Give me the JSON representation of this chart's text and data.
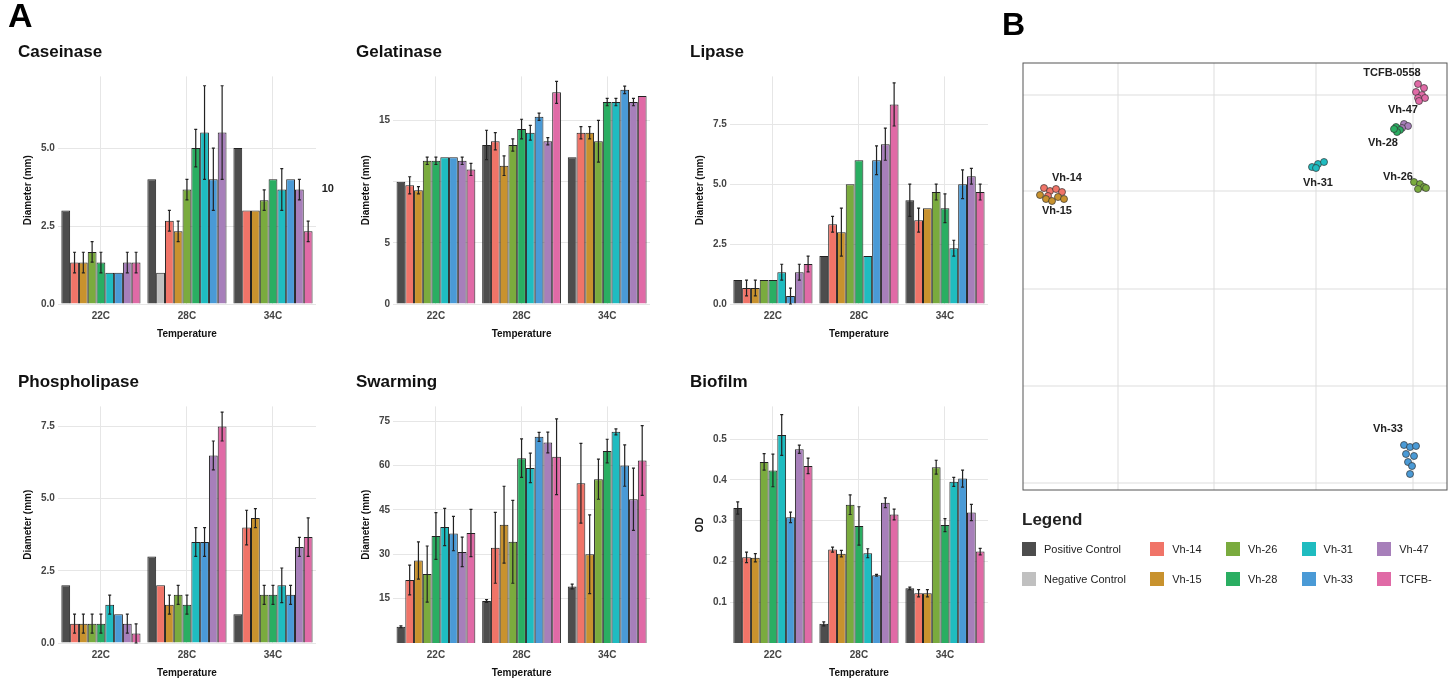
{
  "chart_data": [
    {
      "type": "bar",
      "title": "Caseinase",
      "xlabel": "Temperature",
      "ylabel": "Diameter (mm)",
      "categories": [
        "22C",
        "28C",
        "34C"
      ],
      "ylim": [
        0,
        7.3
      ],
      "yticks": [
        {
          "value": 0,
          "label": "0.0"
        },
        2.5,
        {
          "value": 5,
          "label": "5.0"
        }
      ],
      "grid": true,
      "legend": "right",
      "legend_title": "Legend",
      "annotations": [
        "A",
        "10"
      ],
      "series": [
        {
          "name": "Positive Control",
          "color": "#4d4d4d",
          "values": [
            3,
            4,
            5
          ]
        },
        {
          "name": "Negative Control",
          "color": "#c0c0c0",
          "values": [
            null,
            1,
            null
          ]
        },
        {
          "name": "Vh-14",
          "color": "#f07468",
          "values": [
            1.33,
            2.67,
            3
          ],
          "errors": [
            0.33,
            0.33,
            null
          ]
        },
        {
          "name": "Vh-15",
          "color": "#c8922e",
          "values": [
            1.33,
            2.33,
            3
          ],
          "errors": [
            0.33,
            0.33,
            null
          ]
        },
        {
          "name": "Vh-26",
          "color": "#7aab3e",
          "values": [
            1.67,
            3.67,
            3.33
          ],
          "errors": [
            0.33,
            0.33,
            0.33
          ]
        },
        {
          "name": "Vh-28",
          "color": "#2aae62",
          "values": [
            1.33,
            5,
            4
          ],
          "errors": [
            0.33,
            0.6,
            null
          ]
        },
        {
          "name": "Vh-31",
          "color": "#1fbcc0",
          "values": [
            1,
            5.5,
            3.67
          ],
          "errors": [
            null,
            1.5,
            0.67
          ]
        },
        {
          "name": "Vh-33",
          "color": "#4a9ad6",
          "values": [
            1,
            4,
            4
          ],
          "errors": [
            null,
            1,
            null
          ]
        },
        {
          "name": "Vh-47",
          "color": "#a77fba",
          "values": [
            1.33,
            5.5,
            3.67
          ],
          "errors": [
            0.33,
            1.5,
            0.33
          ]
        },
        {
          "name": "TCFB-",
          "color": "#e06aa6",
          "values": [
            1.33,
            null,
            2.33
          ],
          "errors": [
            0.33,
            null,
            0.33
          ]
        }
      ]
    },
    {
      "type": "bar",
      "title": "Gelatinase",
      "xlabel": "Temperature",
      "ylabel": "Diameter (mm)",
      "categories": [
        "22C",
        "28C",
        "34C"
      ],
      "ylim": [
        0,
        18.6
      ],
      "yticks": [
        0,
        5,
        {
          "value": 10,
          "label": null
        },
        15
      ],
      "grid": true,
      "series": [
        {
          "color": "#4d4d4d",
          "values": [
            10,
            13,
            12
          ],
          "errors": [
            null,
            1.2,
            null
          ]
        },
        {
          "color": "#c0c0c0",
          "values": [
            null,
            null,
            null
          ]
        },
        {
          "color": "#f07468",
          "values": [
            9.7,
            13.3,
            14
          ],
          "errors": [
            0.7,
            0.7,
            0.5
          ]
        },
        {
          "color": "#c8922e",
          "values": [
            9.3,
            11.3,
            14
          ],
          "errors": [
            0.3,
            0.8,
            0.5
          ]
        },
        {
          "color": "#7aab3e",
          "values": [
            11.7,
            13,
            13.3
          ],
          "errors": [
            0.3,
            0.5,
            1.7
          ]
        },
        {
          "color": "#2aae62",
          "values": [
            11.7,
            14.3,
            16.5
          ],
          "errors": [
            0.3,
            0.8,
            0.3
          ]
        },
        {
          "color": "#1fbcc0",
          "values": [
            12,
            14,
            16.5
          ],
          "errors": [
            null,
            0.6,
            0.3
          ]
        },
        {
          "color": "#4a9ad6",
          "values": [
            12,
            15.3,
            17.5
          ],
          "errors": [
            null,
            0.3,
            0.3
          ]
        },
        {
          "color": "#a77fba",
          "values": [
            11.7,
            13.3,
            16.5
          ],
          "errors": [
            0.3,
            0.3,
            0.3
          ]
        },
        {
          "color": "#e06aa6",
          "values": [
            11,
            17.3,
            17
          ],
          "errors": [
            0.5,
            0.9,
            null
          ]
        }
      ]
    },
    {
      "type": "bar",
      "title": "Lipase",
      "xlabel": "Temperature",
      "ylabel": "Diameter (mm)",
      "categories": [
        "22C",
        "28C",
        "34C"
      ],
      "ylim": [
        0,
        9.5
      ],
      "yticks": [
        {
          "value": 0,
          "label": "0.0"
        },
        2.5,
        {
          "value": 5,
          "label": "5.0"
        },
        7.5
      ],
      "grid": true,
      "series": [
        {
          "color": "#4d4d4d",
          "values": [
            1,
            2,
            4.33
          ],
          "errors": [
            null,
            null,
            0.67
          ]
        },
        {
          "color": "#c0c0c0",
          "values": [
            null,
            null,
            null
          ]
        },
        {
          "color": "#f07468",
          "values": [
            0.67,
            3.33,
            3.5
          ],
          "errors": [
            0.33,
            0.33,
            0.5
          ]
        },
        {
          "color": "#c8922e",
          "values": [
            0.67,
            3,
            4
          ],
          "errors": [
            0.33,
            1,
            null
          ]
        },
        {
          "color": "#7aab3e",
          "values": [
            1,
            5,
            4.67
          ],
          "errors": [
            null,
            null,
            0.33
          ]
        },
        {
          "color": "#2aae62",
          "values": [
            1,
            6,
            4
          ],
          "errors": [
            null,
            null,
            0.6
          ]
        },
        {
          "color": "#1fbcc0",
          "values": [
            1.33,
            2,
            2.33
          ],
          "errors": [
            0.33,
            null,
            0.33
          ]
        },
        {
          "color": "#4a9ad6",
          "values": [
            0.33,
            6,
            5
          ],
          "errors": [
            0.33,
            0.6,
            0.6
          ]
        },
        {
          "color": "#a77fba",
          "values": [
            1.33,
            6.67,
            5.33
          ],
          "errors": [
            0.33,
            0.67,
            0.33
          ]
        },
        {
          "color": "#e06aa6",
          "values": [
            1.67,
            8.33,
            4.67
          ],
          "errors": [
            0.33,
            0.9,
            0.33
          ]
        }
      ]
    },
    {
      "type": "bar",
      "title": "Phospholipase",
      "xlabel": "Temperature",
      "ylabel": "Diameter (mm)",
      "categories": [
        "22C",
        "28C",
        "34C"
      ],
      "ylim": [
        0,
        8.2
      ],
      "yticks": [
        {
          "value": 0,
          "label": "0.0"
        },
        2.5,
        {
          "value": 5,
          "label": "5.0"
        },
        7.5
      ],
      "grid": true,
      "series": [
        {
          "color": "#4d4d4d",
          "values": [
            2,
            3,
            1
          ]
        },
        {
          "color": "#c0c0c0",
          "values": [
            null,
            null,
            null
          ]
        },
        {
          "color": "#f07468",
          "values": [
            0.67,
            2,
            4
          ],
          "errors": [
            0.33,
            null,
            0.6
          ]
        },
        {
          "color": "#c8922e",
          "values": [
            0.67,
            1.33,
            4.33
          ],
          "errors": [
            0.33,
            0.33,
            0.33
          ]
        },
        {
          "color": "#7aab3e",
          "values": [
            0.67,
            1.67,
            1.67
          ],
          "errors": [
            0.33,
            0.33,
            0.33
          ]
        },
        {
          "color": "#2aae62",
          "values": [
            0.67,
            1.33,
            1.67
          ],
          "errors": [
            0.33,
            0.33,
            0.33
          ]
        },
        {
          "color": "#1fbcc0",
          "values": [
            1.33,
            3.5,
            2
          ],
          "errors": [
            0.33,
            0.5,
            0.6
          ]
        },
        {
          "color": "#4a9ad6",
          "values": [
            1,
            3.5,
            1.67
          ],
          "errors": [
            null,
            0.5,
            0.33
          ]
        },
        {
          "color": "#a77fba",
          "values": [
            0.67,
            6.5,
            3.33
          ],
          "errors": [
            0.33,
            0.5,
            0.33
          ]
        },
        {
          "color": "#e06aa6",
          "values": [
            0.33,
            7.5,
            3.67
          ],
          "errors": [
            0.33,
            0.5,
            0.67
          ]
        }
      ]
    },
    {
      "type": "bar",
      "title": "Swarming",
      "xlabel": "Temperature",
      "ylabel": "Diameter (mm)",
      "categories": [
        "22C",
        "28C",
        "34C"
      ],
      "ylim": [
        0,
        80
      ],
      "yticks": [
        15,
        30,
        45,
        60,
        75
      ],
      "grid": true,
      "series": [
        {
          "color": "#4d4d4d",
          "values": [
            5.5,
            14.2,
            19.1
          ],
          "errors": [
            0.3,
            0.5,
            0.8
          ]
        },
        {
          "color": "#c0c0c0",
          "values": [
            null,
            null,
            null
          ]
        },
        {
          "color": "#f07468",
          "values": [
            21.3,
            32.2,
            54
          ],
          "errors": [
            5,
            12,
            13.5
          ]
        },
        {
          "color": "#c8922e",
          "values": [
            27.9,
            40,
            30
          ],
          "errors": [
            6.3,
            13,
            13.3
          ]
        },
        {
          "color": "#7aab3e",
          "values": [
            23.3,
            34.2,
            55.4
          ],
          "errors": [
            9.5,
            14,
            6.8
          ]
        },
        {
          "color": "#2aae62",
          "values": [
            36.2,
            62.5,
            64.9
          ],
          "errors": [
            7.9,
            6.5,
            4
          ]
        },
        {
          "color": "#1fbcc0",
          "values": [
            39.2,
            59.2,
            71.4
          ],
          "errors": [
            6.3,
            5,
            1
          ]
        },
        {
          "color": "#4a9ad6",
          "values": [
            37,
            69.7,
            60
          ],
          "errors": [
            5.8,
            1.5,
            7
          ]
        },
        {
          "color": "#a77fba",
          "values": [
            30.8,
            67.8,
            48.6
          ],
          "errors": [
            5,
            3.5,
            10.5
          ]
        },
        {
          "color": "#e06aa6",
          "values": [
            37.2,
            63,
            61.7
          ],
          "errors": [
            8,
            12.8,
            11.8
          ]
        }
      ]
    },
    {
      "type": "bar",
      "title": "Biofilm",
      "xlabel": "Temperature",
      "ylabel": "OD",
      "categories": [
        "22C",
        "28C",
        "34C"
      ],
      "ylim": [
        0,
        0.58
      ],
      "yticks": [
        0.1,
        0.2,
        0.3,
        0.4,
        0.5
      ],
      "grid": true,
      "series": [
        {
          "color": "#4d4d4d",
          "values": [
            0.331,
            0.047,
            0.134
          ],
          "errors": [
            0.015,
            0.005,
            0.003
          ]
        },
        {
          "color": "#c0c0c0",
          "values": [
            null,
            null,
            null
          ]
        },
        {
          "color": "#f07468",
          "values": [
            0.21,
            0.229,
            0.122
          ],
          "errors": [
            0.013,
            0.006,
            0.009
          ]
        },
        {
          "color": "#c8922e",
          "values": [
            0.209,
            0.219,
            0.122
          ],
          "errors": [
            0.01,
            0.008,
            0.009
          ]
        },
        {
          "color": "#7aab3e",
          "values": [
            0.444,
            0.339,
            0.431
          ],
          "errors": [
            0.02,
            0.024,
            0.017
          ]
        },
        {
          "color": "#2aae62",
          "values": [
            0.423,
            0.287,
            0.289
          ],
          "errors": [
            0.04,
            0.047,
            0.016
          ]
        },
        {
          "color": "#1fbcc0",
          "values": [
            0.51,
            0.22,
            0.395
          ],
          "errors": [
            0.05,
            0.011,
            0.011
          ]
        },
        {
          "color": "#4a9ad6",
          "values": [
            0.308,
            0.166,
            0.403
          ],
          "errors": [
            0.013,
            0.002,
            0.021
          ]
        },
        {
          "color": "#a77fba",
          "values": [
            0.475,
            0.344,
            0.32
          ],
          "errors": [
            0.01,
            0.012,
            0.02
          ]
        },
        {
          "color": "#e06aa6",
          "values": [
            0.434,
            0.315,
            0.224
          ],
          "errors": [
            0.019,
            0.013,
            0.008
          ]
        }
      ]
    },
    {
      "type": "other",
      "title": "B",
      "annotations": [
        "TCFB-0558",
        "Vh-47",
        "Vh-28",
        "Vh-31",
        "Vh-26",
        "Vh-14",
        "Vh-15",
        "Vh-33"
      ]
    }
  ]
}
